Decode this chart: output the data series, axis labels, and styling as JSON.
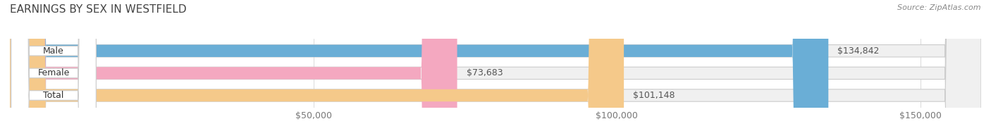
{
  "title": "EARNINGS BY SEX IN WESTFIELD",
  "source": "Source: ZipAtlas.com",
  "categories": [
    "Male",
    "Female",
    "Total"
  ],
  "values": [
    134842,
    73683,
    101148
  ],
  "bar_colors": [
    "#6aaed6",
    "#f4a8c0",
    "#f5c98a"
  ],
  "label_colors": [
    "#6aaed6",
    "#f4a8c0",
    "#f5c98a"
  ],
  "bar_bg_color": "#f0f0f0",
  "value_labels": [
    "$134,842",
    "$73,683",
    "$101,148"
  ],
  "tick_labels": [
    "$50,000",
    "$100,000",
    "$150,000"
  ],
  "tick_values": [
    50000,
    100000,
    150000
  ],
  "xlim_min": 0,
  "xlim_max": 160000,
  "bar_height": 0.55,
  "title_fontsize": 11,
  "source_fontsize": 8,
  "tick_fontsize": 9,
  "value_fontsize": 9,
  "label_fontsize": 9,
  "background_color": "#ffffff"
}
